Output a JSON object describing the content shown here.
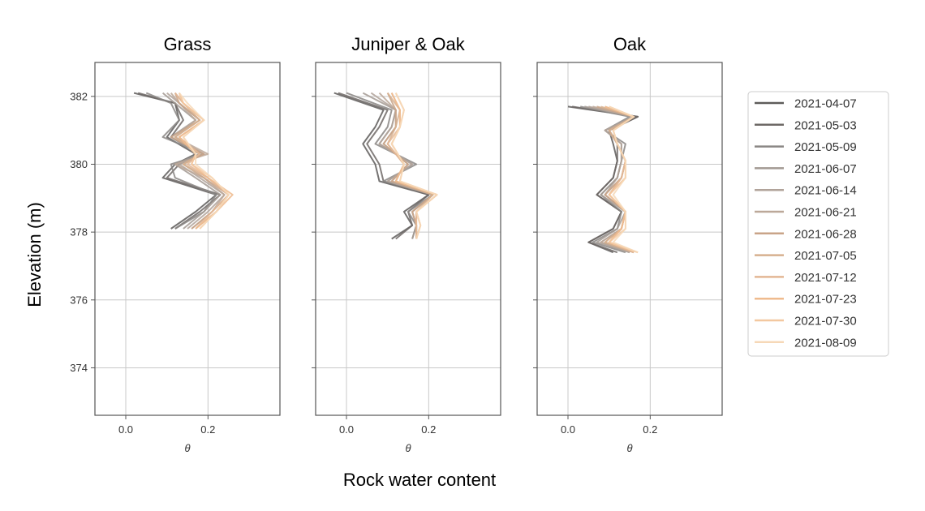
{
  "figure": {
    "ylabel": "Elevation (m)",
    "xlabel": "Rock water content"
  },
  "chart_data": {
    "type": "line",
    "orientation": "vertical-profile",
    "panel_xlabel": "θ",
    "xlim": [
      -0.075,
      0.375
    ],
    "ylim": [
      372.6,
      383.0
    ],
    "xticks": [
      0.0,
      0.2
    ],
    "xtick_labels": [
      "0.0",
      "0.2"
    ],
    "yticks": [
      374,
      376,
      378,
      380,
      382
    ],
    "ytick_labels": [
      "374",
      "376",
      "378",
      "380",
      "382"
    ],
    "grid": true,
    "legend_position": "right",
    "legend": [
      {
        "name": "2021-04-07",
        "color": "#5e5c5a"
      },
      {
        "name": "2021-05-03",
        "color": "#6e6966"
      },
      {
        "name": "2021-05-09",
        "color": "#8a8684"
      },
      {
        "name": "2021-06-07",
        "color": "#a39a93"
      },
      {
        "name": "2021-06-14",
        "color": "#b1a39a"
      },
      {
        "name": "2021-06-21",
        "color": "#bca899"
      },
      {
        "name": "2021-06-28",
        "color": "#c9a488"
      },
      {
        "name": "2021-07-05",
        "color": "#d6b08f"
      },
      {
        "name": "2021-07-12",
        "color": "#e3b795"
      },
      {
        "name": "2021-07-23",
        "color": "#efbb8e"
      },
      {
        "name": "2021-07-30",
        "color": "#f3c8a0"
      },
      {
        "name": "2021-08-09",
        "color": "#f6d8b7"
      }
    ],
    "panels": [
      {
        "title": "Grass",
        "y": [
          382.1,
          381.8,
          381.3,
          380.8,
          380.3,
          380.0,
          379.6,
          379.1,
          378.6,
          378.1
        ],
        "series": [
          {
            "name": "2021-04-07",
            "x": [
              0.02,
              0.12,
              0.13,
              0.1,
              0.17,
              0.12,
              0.09,
              0.22,
              0.17,
              0.11
            ]
          },
          {
            "name": "2021-05-03",
            "x": [
              0.03,
              0.12,
              0.14,
              0.11,
              0.18,
              0.13,
              0.1,
              0.23,
              0.18,
              0.12
            ]
          },
          {
            "name": "2021-05-09",
            "x": [
              0.05,
              0.11,
              0.13,
              0.09,
              0.19,
              0.11,
              0.12,
              0.22,
              0.19,
              0.12
            ]
          },
          {
            "name": "2021-06-07",
            "x": [
              0.09,
              0.12,
              0.17,
              0.11,
              0.18,
              0.12,
              0.17,
              0.23,
              0.19,
              0.14
            ]
          },
          {
            "name": "2021-06-14",
            "x": [
              0.1,
              0.13,
              0.18,
              0.12,
              0.19,
              0.13,
              0.18,
              0.24,
              0.2,
              0.15
            ]
          },
          {
            "name": "2021-06-21",
            "x": [
              0.11,
              0.13,
              0.17,
              0.12,
              0.2,
              0.12,
              0.19,
              0.24,
              0.21,
              0.16
            ]
          },
          {
            "name": "2021-06-28",
            "x": [
              0.12,
              0.13,
              0.18,
              0.11,
              0.19,
              0.14,
              0.19,
              0.25,
              0.21,
              0.16
            ]
          },
          {
            "name": "2021-07-05",
            "x": [
              0.12,
              0.14,
              0.18,
              0.12,
              0.18,
              0.14,
              0.2,
              0.25,
              0.22,
              0.17
            ]
          },
          {
            "name": "2021-07-12",
            "x": [
              0.12,
              0.14,
              0.19,
              0.13,
              0.18,
              0.15,
              0.2,
              0.25,
              0.21,
              0.17
            ]
          },
          {
            "name": "2021-07-23",
            "x": [
              0.13,
              0.14,
              0.19,
              0.13,
              0.17,
              0.16,
              0.2,
              0.26,
              0.22,
              0.17
            ]
          },
          {
            "name": "2021-07-30",
            "x": [
              0.13,
              0.14,
              0.19,
              0.14,
              0.17,
              0.16,
              0.21,
              0.25,
              0.22,
              0.18
            ]
          },
          {
            "name": "2021-08-09",
            "x": [
              0.13,
              0.15,
              0.19,
              0.14,
              0.17,
              0.17,
              0.21,
              0.25,
              0.22,
              0.18
            ]
          }
        ]
      },
      {
        "title": "Juniper & Oak",
        "y": [
          382.1,
          381.6,
          381.1,
          380.6,
          380.0,
          379.5,
          379.1,
          378.6,
          378.2,
          377.8
        ],
        "series": [
          {
            "name": "2021-04-07",
            "x": [
              -0.03,
              0.09,
              0.07,
              0.04,
              0.07,
              0.08,
              0.2,
              0.14,
              0.16,
              0.11
            ]
          },
          {
            "name": "2021-05-03",
            "x": [
              -0.02,
              0.1,
              0.08,
              0.05,
              0.08,
              0.09,
              0.2,
              0.15,
              0.16,
              0.12
            ]
          },
          {
            "name": "2021-05-09",
            "x": [
              0.0,
              0.11,
              0.1,
              0.07,
              0.17,
              0.09,
              0.21,
              0.15,
              0.17,
              0.16
            ]
          },
          {
            "name": "2021-06-07",
            "x": [
              0.04,
              0.12,
              0.11,
              0.08,
              0.16,
              0.1,
              0.21,
              0.16,
              0.17,
              0.16
            ]
          },
          {
            "name": "2021-06-14",
            "x": [
              0.06,
              0.12,
              0.11,
              0.08,
              0.16,
              0.1,
              0.21,
              0.16,
              0.17,
              0.17
            ]
          },
          {
            "name": "2021-06-21",
            "x": [
              0.08,
              0.12,
              0.12,
              0.09,
              0.15,
              0.11,
              0.21,
              0.16,
              0.17,
              0.17
            ]
          },
          {
            "name": "2021-06-28",
            "x": [
              0.1,
              0.12,
              0.12,
              0.09,
              0.15,
              0.11,
              0.21,
              0.16,
              0.17,
              0.17
            ]
          },
          {
            "name": "2021-07-05",
            "x": [
              0.1,
              0.13,
              0.12,
              0.1,
              0.14,
              0.12,
              0.21,
              0.17,
              0.17,
              0.17
            ]
          },
          {
            "name": "2021-07-12",
            "x": [
              0.11,
              0.13,
              0.13,
              0.1,
              0.14,
              0.12,
              0.22,
              0.17,
              0.17,
              0.17
            ]
          },
          {
            "name": "2021-07-23",
            "x": [
              0.11,
              0.13,
              0.13,
              0.11,
              0.14,
              0.12,
              0.22,
              0.17,
              0.18,
              0.17
            ]
          },
          {
            "name": "2021-07-30",
            "x": [
              0.12,
              0.14,
              0.13,
              0.11,
              0.14,
              0.13,
              0.22,
              0.17,
              0.18,
              0.17
            ]
          },
          {
            "name": "2021-08-09",
            "x": [
              0.12,
              0.14,
              0.13,
              0.11,
              0.14,
              0.13,
              0.22,
              0.17,
              0.18,
              0.17
            ]
          }
        ]
      },
      {
        "title": "Oak",
        "y": [
          381.7,
          381.4,
          381.0,
          380.6,
          380.1,
          379.6,
          379.1,
          378.6,
          378.1,
          377.7,
          377.4
        ],
        "series": [
          {
            "name": "2021-04-07",
            "x": [
              0.0,
              0.17,
              0.1,
              0.11,
              0.12,
              0.11,
              0.07,
              0.13,
              0.11,
              0.05,
              0.11
            ]
          },
          {
            "name": "2021-05-03",
            "x": [
              0.01,
              0.17,
              0.1,
              0.12,
              0.12,
              0.11,
              0.07,
              0.13,
              0.11,
              0.05,
              0.12
            ]
          },
          {
            "name": "2021-05-09",
            "x": [
              0.03,
              0.15,
              0.09,
              0.14,
              0.13,
              0.12,
              0.08,
              0.13,
              0.12,
              0.06,
              0.14
            ]
          },
          {
            "name": "2021-06-07",
            "x": [
              0.04,
              0.16,
              0.09,
              0.13,
              0.13,
              0.12,
              0.08,
              0.14,
              0.12,
              0.07,
              0.15
            ]
          },
          {
            "name": "2021-06-14",
            "x": [
              0.05,
              0.16,
              0.09,
              0.13,
              0.13,
              0.12,
              0.09,
              0.14,
              0.13,
              0.08,
              0.15
            ]
          },
          {
            "name": "2021-06-21",
            "x": [
              0.06,
              0.16,
              0.1,
              0.12,
              0.14,
              0.13,
              0.09,
              0.14,
              0.13,
              0.08,
              0.16
            ]
          },
          {
            "name": "2021-06-28",
            "x": [
              0.07,
              0.16,
              0.1,
              0.12,
              0.14,
              0.13,
              0.09,
              0.14,
              0.13,
              0.09,
              0.16
            ]
          },
          {
            "name": "2021-07-05",
            "x": [
              0.08,
              0.16,
              0.1,
              0.12,
              0.14,
              0.13,
              0.1,
              0.14,
              0.13,
              0.09,
              0.16
            ]
          },
          {
            "name": "2021-07-12",
            "x": [
              0.09,
              0.16,
              0.11,
              0.12,
              0.14,
              0.13,
              0.1,
              0.14,
              0.13,
              0.1,
              0.16
            ]
          },
          {
            "name": "2021-07-23",
            "x": [
              0.09,
              0.16,
              0.11,
              0.12,
              0.14,
              0.14,
              0.1,
              0.14,
              0.13,
              0.1,
              0.17
            ]
          },
          {
            "name": "2021-07-30",
            "x": [
              0.1,
              0.16,
              0.11,
              0.12,
              0.14,
              0.14,
              0.1,
              0.14,
              0.14,
              0.1,
              0.17
            ]
          },
          {
            "name": "2021-08-09",
            "x": [
              0.1,
              0.16,
              0.11,
              0.12,
              0.14,
              0.14,
              0.11,
              0.14,
              0.14,
              0.11,
              0.17
            ]
          }
        ]
      }
    ]
  }
}
